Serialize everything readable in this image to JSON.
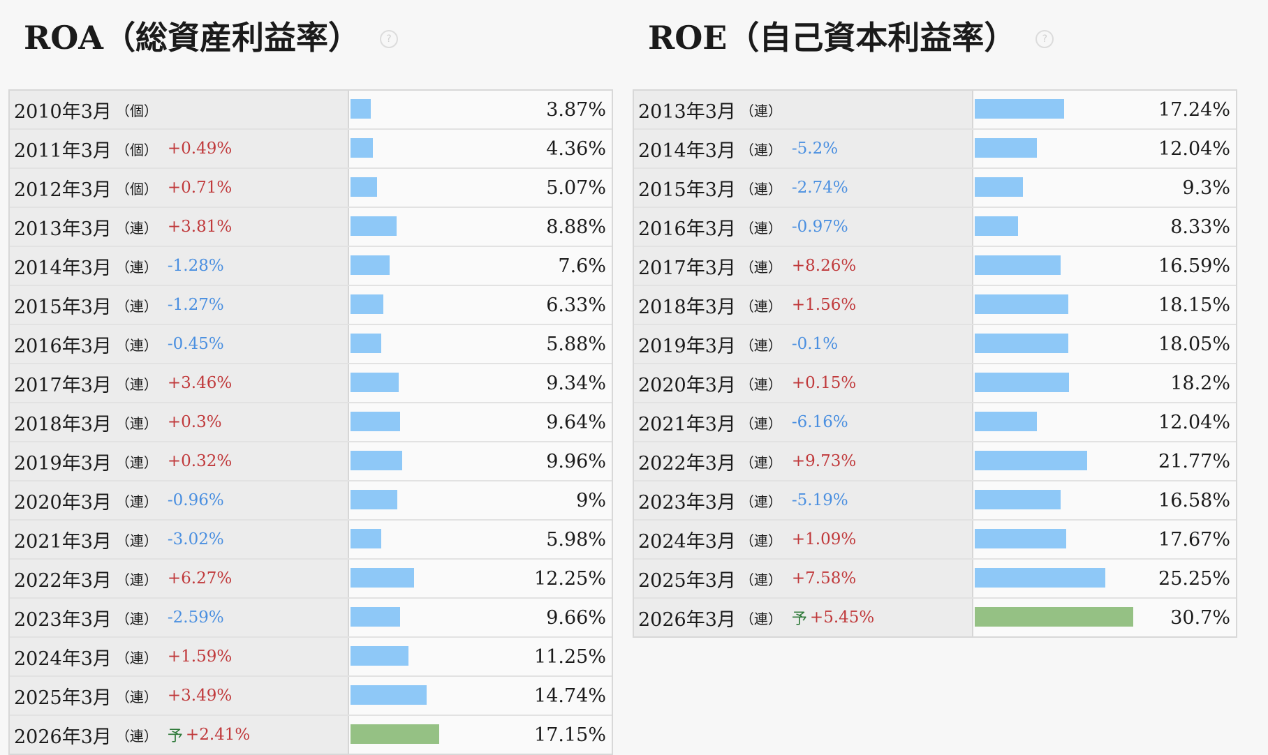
{
  "chart_data": [
    {
      "type": "bar",
      "title": "ROA（総資産利益率）",
      "unit": "%",
      "categories": [
        "2010年3月",
        "2011年3月",
        "2012年3月",
        "2013年3月",
        "2014年3月",
        "2015年3月",
        "2016年3月",
        "2017年3月",
        "2018年3月",
        "2019年3月",
        "2020年3月",
        "2021年3月",
        "2022年3月",
        "2023年3月",
        "2024年3月",
        "2025年3月",
        "2026年3月"
      ],
      "kinds": [
        "（個）",
        "（個）",
        "（個）",
        "（連）",
        "（連）",
        "（連）",
        "（連）",
        "（連）",
        "（連）",
        "（連）",
        "（連）",
        "（連）",
        "（連）",
        "（連）",
        "（連）",
        "（連）",
        "（連）"
      ],
      "changes": [
        "",
        "+0.49%",
        "+0.71%",
        "+3.81%",
        "-1.28%",
        "-1.27%",
        "-0.45%",
        "+3.46%",
        "+0.3%",
        "+0.32%",
        "-0.96%",
        "-3.02%",
        "+6.27%",
        "-2.59%",
        "+1.59%",
        "+3.49%",
        "+2.41%"
      ],
      "forecast": [
        false,
        false,
        false,
        false,
        false,
        false,
        false,
        false,
        false,
        false,
        false,
        false,
        false,
        false,
        false,
        false,
        true
      ],
      "values": [
        3.87,
        4.36,
        5.07,
        8.88,
        7.6,
        6.33,
        5.88,
        9.34,
        9.64,
        9.96,
        9,
        5.98,
        12.25,
        9.66,
        11.25,
        14.74,
        17.15
      ],
      "value_labels": [
        "3.87%",
        "4.36%",
        "5.07%",
        "8.88%",
        "7.6%",
        "6.33%",
        "5.88%",
        "9.34%",
        "9.64%",
        "9.96%",
        "9%",
        "5.98%",
        "12.25%",
        "9.66%",
        "11.25%",
        "14.74%",
        "17.15%"
      ]
    },
    {
      "type": "bar",
      "title": "ROE（自己資本利益率）",
      "unit": "%",
      "categories": [
        "2013年3月",
        "2014年3月",
        "2015年3月",
        "2016年3月",
        "2017年3月",
        "2018年3月",
        "2019年3月",
        "2020年3月",
        "2021年3月",
        "2022年3月",
        "2023年3月",
        "2024年3月",
        "2025年3月",
        "2026年3月"
      ],
      "kinds": [
        "（連）",
        "（連）",
        "（連）",
        "（連）",
        "（連）",
        "（連）",
        "（連）",
        "（連）",
        "（連）",
        "（連）",
        "（連）",
        "（連）",
        "（連）",
        "（連）"
      ],
      "changes": [
        "",
        "-5.2%",
        "-2.74%",
        "-0.97%",
        "+8.26%",
        "+1.56%",
        "-0.1%",
        "+0.15%",
        "-6.16%",
        "+9.73%",
        "-5.19%",
        "+1.09%",
        "+7.58%",
        "+5.45%"
      ],
      "forecast": [
        false,
        false,
        false,
        false,
        false,
        false,
        false,
        false,
        false,
        false,
        false,
        false,
        false,
        true
      ],
      "values": [
        17.24,
        12.04,
        9.3,
        8.33,
        16.59,
        18.15,
        18.05,
        18.2,
        12.04,
        21.77,
        16.58,
        17.67,
        25.25,
        30.7
      ],
      "value_labels": [
        "17.24%",
        "12.04%",
        "9.3%",
        "8.33%",
        "16.59%",
        "18.15%",
        "18.05%",
        "18.2%",
        "12.04%",
        "21.77%",
        "16.58%",
        "17.67%",
        "25.25%",
        "30.7%"
      ]
    }
  ],
  "forecast_mark": "予",
  "help_icon_glyph": "?",
  "colors": {
    "bar": "#8ec8f7",
    "forecast_bar": "#95c184",
    "increase": "#c0393b",
    "decrease": "#4a8fe0",
    "forecast_mark": "#2f7a3a"
  }
}
